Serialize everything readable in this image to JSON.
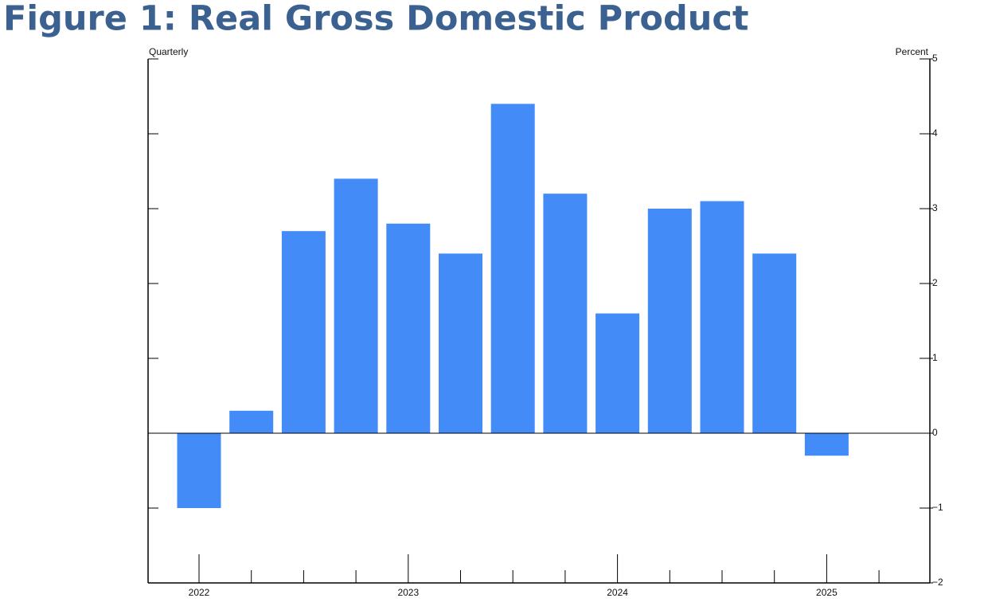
{
  "chart_data": {
    "type": "bar",
    "title": "Figure 1: Real Gross Domestic Product",
    "left_label": "Quarterly",
    "right_label": "Percent",
    "categories": [
      "2022",
      null,
      null,
      null,
      "2023",
      null,
      null,
      null,
      "2024",
      null,
      null,
      null,
      "2025",
      null
    ],
    "values": [
      -1.0,
      0.3,
      2.7,
      3.4,
      2.8,
      2.4,
      4.4,
      3.2,
      1.6,
      3.0,
      3.1,
      2.4,
      -0.3,
      null
    ],
    "color": "#438bf7",
    "ylim": [
      -2,
      5
    ],
    "yticks": [
      {
        "value": -2,
        "label": "−2"
      },
      {
        "value": -1,
        "label": "−1"
      },
      0,
      1,
      2,
      3,
      4,
      5
    ]
  }
}
